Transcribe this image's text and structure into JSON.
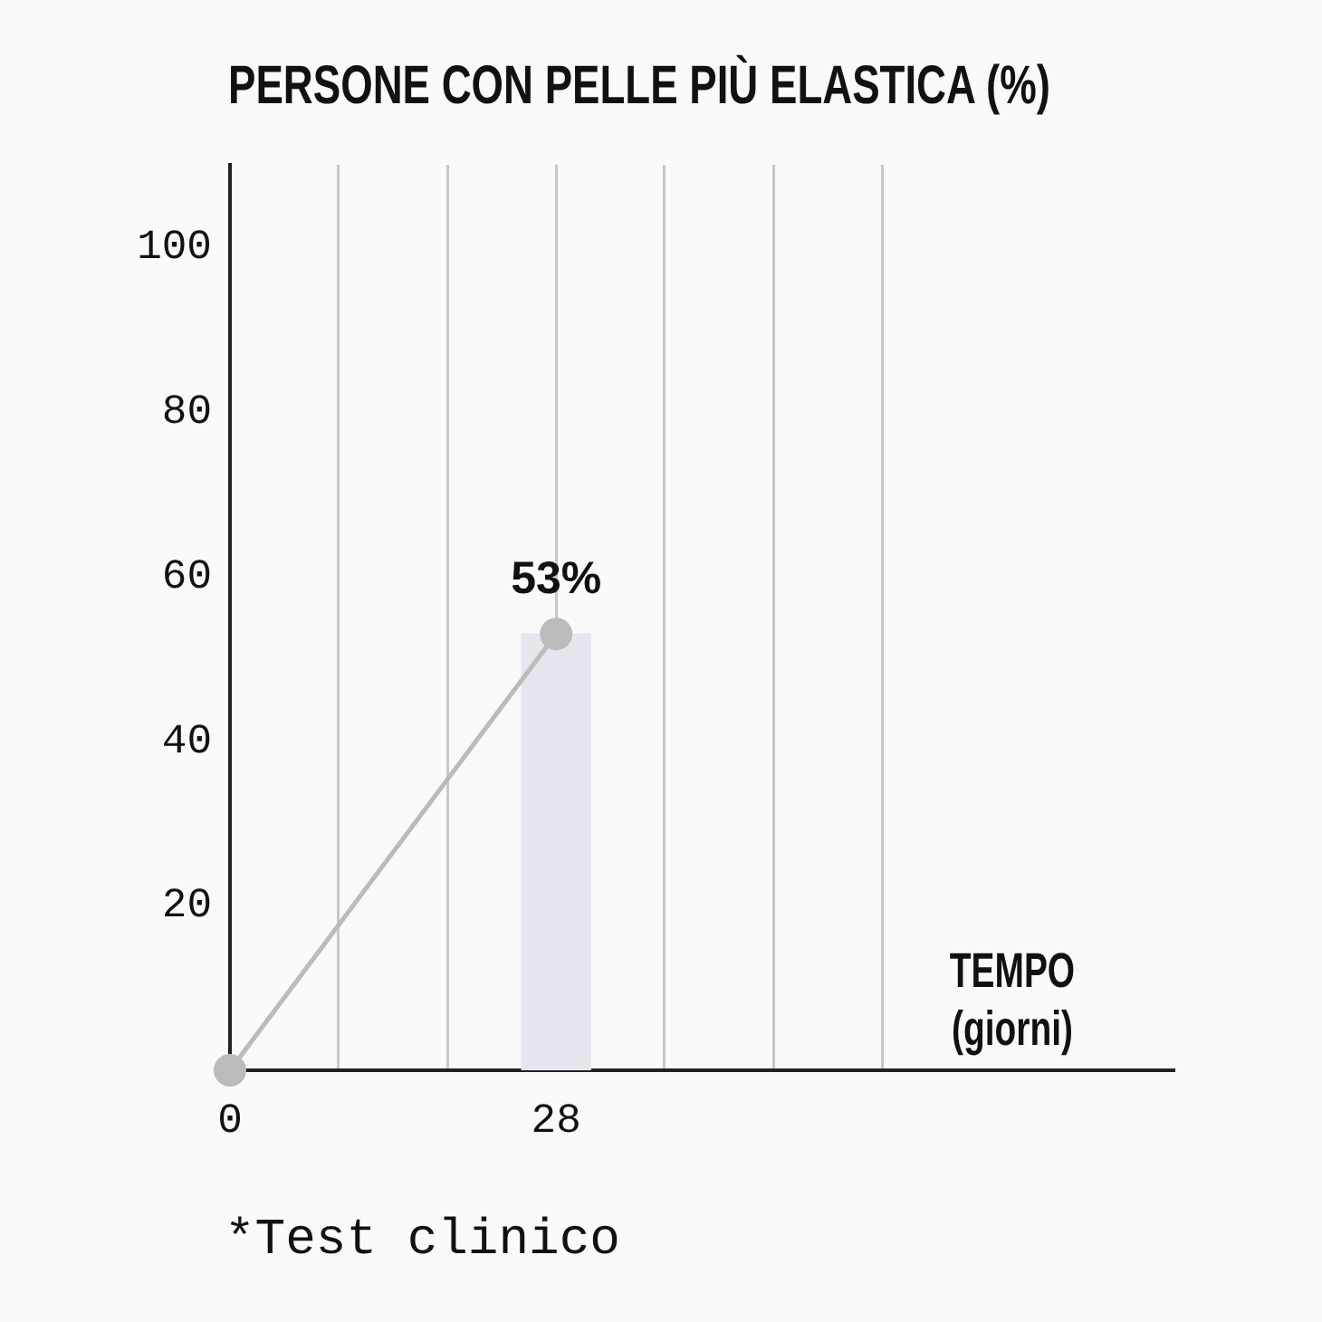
{
  "chart_data": {
    "type": "line",
    "title": "PERSONE CON PELLE PIÙ ELASTICA (%)",
    "xlabel": "TEMPO (giorni)",
    "annotations": [
      "*Test clinico"
    ],
    "x": [
      0,
      28
    ],
    "series": [
      {
        "type": "bar",
        "color": "#e6e6ee",
        "values": [
          null,
          53
        ]
      },
      {
        "color": "#bbbbbb",
        "values": [
          0,
          53
        ],
        "value_labels": [
          null,
          "53%"
        ]
      }
    ],
    "xlim": [
      0,
      81
    ],
    "xticks": [
      0,
      {
        "value": 9.3,
        "label": null
      },
      {
        "value": 18.7,
        "label": null
      },
      28,
      {
        "value": 37.3,
        "label": null
      },
      {
        "value": 46.7,
        "label": null
      },
      {
        "value": 56,
        "label": null
      }
    ],
    "ylim": [
      0,
      110
    ],
    "yticks": [
      20,
      40,
      60,
      80,
      100
    ],
    "grid": "x",
    "legend": false,
    "marker": "circle",
    "line_style": "solid"
  }
}
